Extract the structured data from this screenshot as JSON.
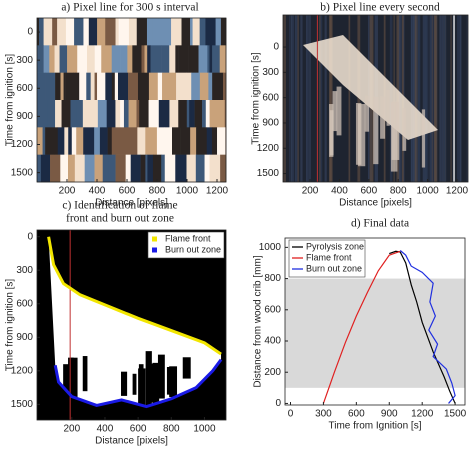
{
  "chart_data": [
    {
      "type": "image",
      "title": [
        "a) Pixel line for 300 s interval"
      ],
      "xlabel": "Distance [pixels]",
      "ylabel": "Time from ignition [s]",
      "xlim": [
        0,
        1260
      ],
      "xticks": [
        200,
        400,
        600,
        800,
        1000,
        1200
      ],
      "ylim": [
        1600,
        -150
      ],
      "yticks": [
        0,
        300,
        600,
        900,
        1200,
        1500
      ]
    },
    {
      "type": "image",
      "title": [
        "b) Pixel line every second"
      ],
      "xlabel": "Distance [pixels]",
      "ylabel": "Time from ignition [s]",
      "xlim": [
        16,
        1275
      ],
      "xticks": [
        200,
        400,
        600,
        800,
        1000,
        1200
      ],
      "ylim": [
        1600,
        -380
      ],
      "yticks": [
        0,
        300,
        600,
        900,
        1200,
        1500
      ]
    },
    {
      "type": "image",
      "title": [
        "c) Identification of flame",
        "front and burn out zone"
      ],
      "xlabel": "Distance [pixels]",
      "ylabel": "Time from ignition [s]",
      "xlim": [
        -10,
        1130
      ],
      "xticks": [
        200,
        400,
        600,
        800,
        1000
      ],
      "ylim": [
        1640,
        -60
      ],
      "yticks": [
        0,
        300,
        600,
        900,
        1200,
        1500
      ],
      "legend": "upper right",
      "series": [
        {
          "name": "Flame front",
          "color": "#f2e600",
          "x": [
            60,
            90,
            150,
            250,
            400,
            600,
            800,
            1000,
            1100
          ],
          "values": [
            0,
            250,
            420,
            520,
            610,
            730,
            840,
            950,
            1050
          ]
        },
        {
          "name": "Burn out zone",
          "color": "#1a1ae6",
          "x": [
            1100,
            1050,
            950,
            800,
            650,
            500,
            350,
            200,
            120,
            100
          ],
          "values": [
            1100,
            1200,
            1350,
            1450,
            1520,
            1460,
            1510,
            1430,
            1300,
            1150
          ]
        }
      ]
    },
    {
      "type": "line",
      "title": [
        "d) Final data"
      ],
      "xlabel": "Time from Ignition [s]",
      "ylabel": "Distance from wood crib [mm]",
      "xlim": [
        -50,
        1590
      ],
      "xticks": [
        0,
        300,
        600,
        900,
        1200,
        1500
      ],
      "ylim": [
        -10,
        1060
      ],
      "yticks": [
        0,
        200,
        400,
        600,
        800,
        1000
      ],
      "band": [
        100,
        800
      ],
      "legend": "upper left",
      "series": [
        {
          "name": "Pyrolysis zone",
          "color": "#000000",
          "x": [
            900,
            960,
            1000,
            1050,
            1100,
            1150,
            1200,
            1300,
            1400,
            1450,
            1500
          ],
          "values": [
            960,
            975,
            970,
            900,
            760,
            650,
            520,
            330,
            170,
            80,
            0
          ]
        },
        {
          "name": "Flame front",
          "color": "#e02020",
          "x": [
            300,
            400,
            500,
            600,
            700,
            800,
            900,
            1000
          ],
          "values": [
            0,
            200,
            390,
            560,
            710,
            850,
            950,
            975
          ]
        },
        {
          "name": "Burn out zone",
          "color": "#2030e0",
          "x": [
            1000,
            1050,
            1100,
            1200,
            1300,
            1270,
            1320,
            1260,
            1340,
            1300,
            1420,
            1470,
            1500,
            1440
          ],
          "values": [
            980,
            950,
            880,
            840,
            770,
            650,
            560,
            470,
            380,
            300,
            220,
            130,
            50,
            0
          ]
        }
      ]
    }
  ]
}
